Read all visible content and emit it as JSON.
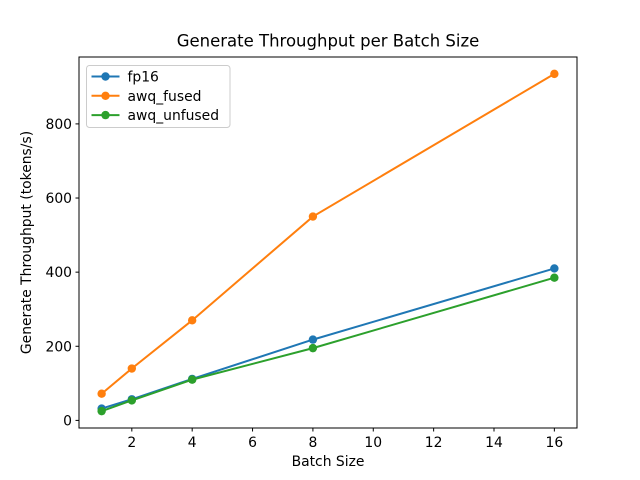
{
  "chart_data": {
    "type": "line",
    "title": "Generate Throughput per Batch Size",
    "xlabel": "Batch Size",
    "ylabel": "Generate Throughput (tokens/s)",
    "x": [
      1,
      2,
      4,
      8,
      16
    ],
    "series": [
      {
        "name": "fp16",
        "color": "#1f77b4",
        "values": [
          32,
          57,
          112,
          218,
          410
        ]
      },
      {
        "name": "awq_fused",
        "color": "#ff7f0e",
        "values": [
          72,
          140,
          270,
          550,
          935
        ]
      },
      {
        "name": "awq_unfused",
        "color": "#2ca02c",
        "values": [
          25,
          54,
          110,
          195,
          385
        ]
      }
    ],
    "xticks": [
      2,
      4,
      6,
      8,
      10,
      12,
      14,
      16
    ],
    "yticks": [
      0,
      200,
      400,
      600,
      800
    ],
    "xlim": [
      0.25,
      16.75
    ],
    "ylim": [
      -20.5,
      980.5
    ],
    "grid": false,
    "marker": "circle",
    "legend_position": "upper left",
    "legend_border_color": "#cccccc",
    "axis_color": "#000000",
    "background_color": "#ffffff"
  }
}
